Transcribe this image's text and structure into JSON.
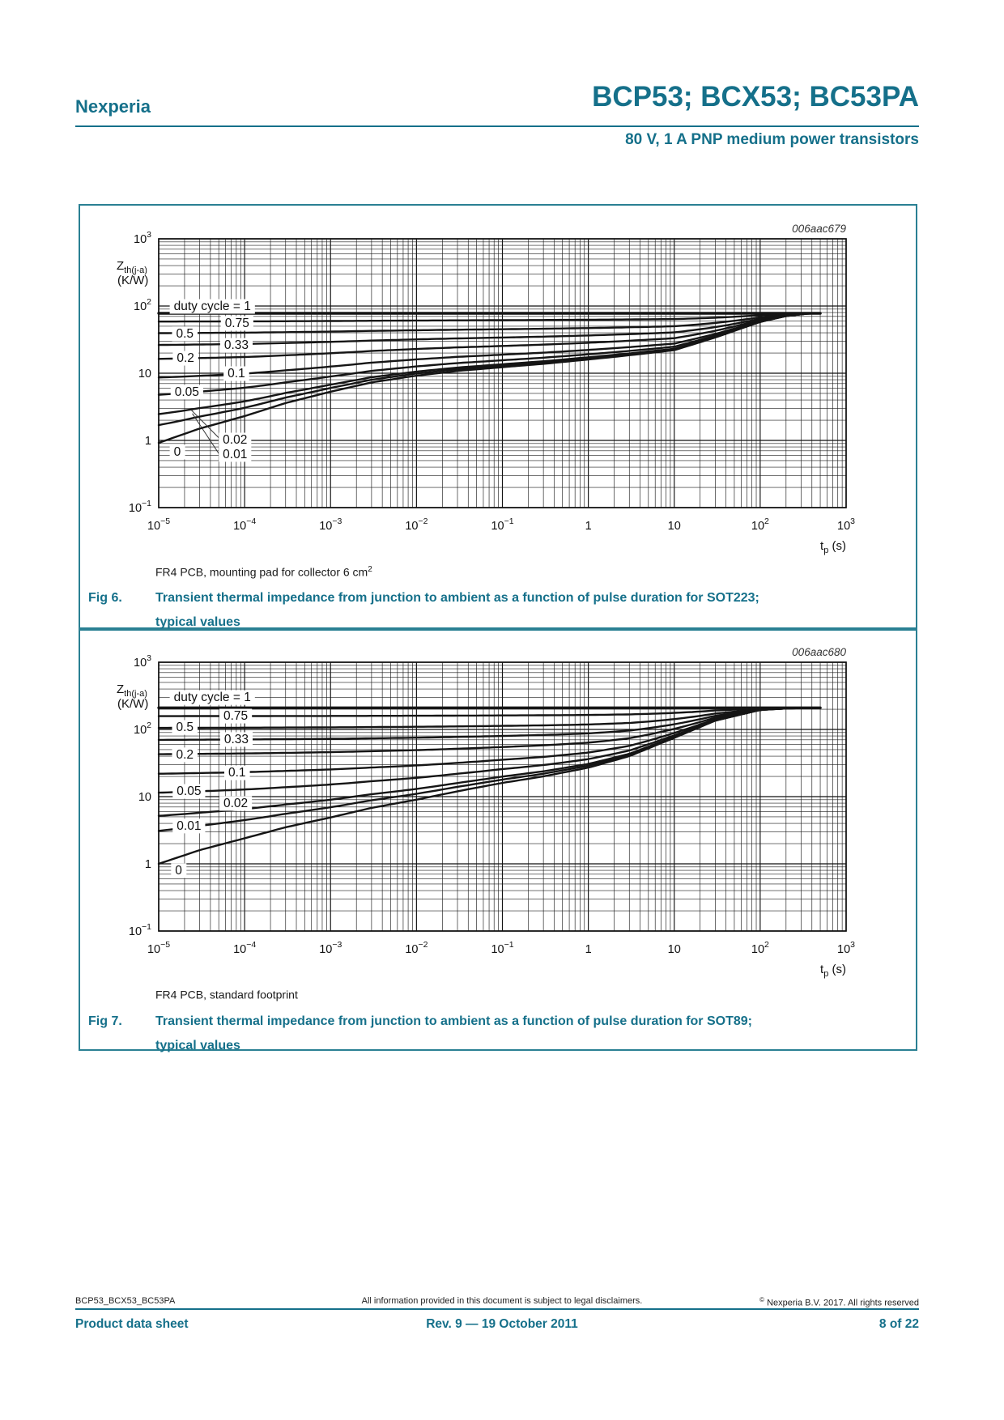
{
  "page": {
    "brand": "Nexperia",
    "title": "BCP53; BCX53; BC53PA",
    "subtitle": "80 V, 1 A PNP medium power transistors",
    "accent_color": "#15708a"
  },
  "figures": [
    {
      "note": "FR4 PCB, mounting pad for collector 6 cm",
      "note_sup": "2",
      "fig_label": "Fig 6.",
      "caption_line1": "Transient thermal impedance from junction to ambient as a function of pulse duration for SOT223;",
      "caption_line2": "typical values"
    },
    {
      "note": "FR4 PCB, standard footprint",
      "note_sup": "",
      "fig_label": "Fig 7.",
      "caption_line1": "Transient thermal impedance from junction to ambient as a function of pulse duration for SOT89;",
      "caption_line2": "typical values"
    }
  ],
  "chart_data": [
    {
      "type": "line",
      "title": "006aac679",
      "xlabel": {
        "main": "t",
        "sub": "p",
        "rest": " (s)"
      },
      "ylabel": {
        "main": "Z",
        "sub": "th(j-a)",
        "unit": "(K/W)"
      },
      "xlim": [
        1e-05,
        1000
      ],
      "ylim": [
        0.1,
        1000
      ],
      "x_scale": "log",
      "y_scale": "log",
      "grid": "full log-log minor grid",
      "curve_end": 500,
      "rth_ja": 78,
      "duty_cycles": [
        1,
        0.75,
        0.5,
        0.33,
        0.2,
        0.1,
        0.05,
        0.02,
        0.01,
        0
      ],
      "series_rule": "Zth(d,tp) = d*Rth(j-a) + (1-d)*Zth_single(tp); duty cycle = 1 is flat at Rth(j-a); 0 is the single-pulse curve",
      "single_pulse": {
        "tp": [
          1e-05,
          3e-05,
          0.0001,
          0.0003,
          0.001,
          0.003,
          0.01,
          0.03,
          0.1,
          0.3,
          1,
          3,
          10,
          30,
          100,
          200,
          350,
          500
        ],
        "zth": [
          0.92,
          1.5,
          2.3,
          3.6,
          5.3,
          7.3,
          9.2,
          10.8,
          12.3,
          13.8,
          16,
          18.5,
          22,
          34,
          58,
          71,
          77,
          78
        ]
      },
      "series": [
        {
          "name": "duty cycle = 1",
          "tp": [
            1e-05,
            0.0001,
            0.001,
            0.01,
            0.1,
            1,
            10,
            100,
            500
          ],
          "zth": [
            78,
            78,
            78,
            78,
            78,
            78,
            78,
            78,
            78
          ]
        },
        {
          "name": "0.75",
          "tp": [
            1e-05,
            0.0001,
            0.001,
            0.01,
            0.1,
            1,
            10,
            100,
            500
          ],
          "zth": [
            58.7,
            59.1,
            59.8,
            60.8,
            61.6,
            62.5,
            64,
            73,
            78
          ]
        },
        {
          "name": "0.5",
          "tp": [
            1e-05,
            0.0001,
            0.001,
            0.01,
            0.1,
            1,
            10,
            100,
            500
          ],
          "zth": [
            39.5,
            40.2,
            41.7,
            43.6,
            45.2,
            47,
            50,
            68,
            78
          ]
        },
        {
          "name": "0.33",
          "tp": [
            1e-05,
            0.0001,
            0.001,
            0.01,
            0.1,
            1,
            10,
            100,
            500
          ],
          "zth": [
            26.4,
            27.3,
            29.3,
            31.9,
            34,
            36.4,
            40.5,
            64.6,
            78
          ]
        },
        {
          "name": "0.2",
          "tp": [
            1e-05,
            0.0001,
            0.001,
            0.01,
            0.1,
            1,
            10,
            100,
            500
          ],
          "zth": [
            16.3,
            17.4,
            19.8,
            23,
            25.4,
            28.4,
            33.2,
            62,
            78
          ]
        },
        {
          "name": "0.1",
          "tp": [
            1e-05,
            0.0001,
            0.001,
            0.01,
            0.1,
            1,
            10,
            100,
            500
          ],
          "zth": [
            8.6,
            9.9,
            12.6,
            16.1,
            18.9,
            22.2,
            27.6,
            60,
            78
          ]
        },
        {
          "name": "0.05",
          "tp": [
            1e-05,
            0.0001,
            0.001,
            0.01,
            0.1,
            1,
            10,
            100,
            500
          ],
          "zth": [
            4.8,
            6.1,
            8.9,
            12.6,
            15.6,
            19.1,
            24.8,
            59,
            78
          ]
        },
        {
          "name": "0.02",
          "tp": [
            1e-05,
            0.0001,
            0.001,
            0.01,
            0.1,
            1,
            10,
            100,
            500
          ],
          "zth": [
            2.5,
            3.8,
            6.8,
            10.6,
            13.6,
            17.2,
            23.1,
            58.4,
            78
          ]
        },
        {
          "name": "0.01",
          "tp": [
            1e-05,
            0.0001,
            0.001,
            0.01,
            0.1,
            1,
            10,
            100,
            500
          ],
          "zth": [
            1.7,
            3.1,
            6,
            9.9,
            13,
            16.6,
            22.6,
            58.2,
            78
          ]
        },
        {
          "name": "0",
          "tp": [
            1e-05,
            0.0001,
            0.001,
            0.01,
            0.1,
            1,
            10,
            100,
            500
          ],
          "zth": [
            0.92,
            2.3,
            5.3,
            9.2,
            12.3,
            16,
            22,
            58,
            78
          ]
        }
      ],
      "x_ticks": [
        {
          "m": "10",
          "e": "−5"
        },
        {
          "m": "10",
          "e": "−4"
        },
        {
          "m": "10",
          "e": "−3"
        },
        {
          "m": "10",
          "e": "−2"
        },
        {
          "m": "10",
          "e": "−1"
        },
        {
          "m": "1"
        },
        {
          "m": "10"
        },
        {
          "m": "10",
          "e": "2"
        },
        {
          "m": "10",
          "e": "3"
        }
      ],
      "y_ticks": [
        {
          "m": "10",
          "e": "3"
        },
        {
          "m": "10",
          "e": "2"
        },
        {
          "m": "10"
        },
        {
          "m": "1"
        },
        {
          "m": "10",
          "e": "−1"
        }
      ],
      "labels": [
        {
          "text": "duty cycle = 1",
          "fx": 0.078,
          "fy": 0.25
        },
        {
          "text": "0.75",
          "fx": 0.114,
          "fy": 0.313
        },
        {
          "text": "0.5",
          "fx": 0.038,
          "fy": 0.352
        },
        {
          "text": "0.33",
          "fx": 0.113,
          "fy": 0.395
        },
        {
          "text": "0.2",
          "fx": 0.039,
          "fy": 0.443
        },
        {
          "text": "0.1",
          "fx": 0.113,
          "fy": 0.5
        },
        {
          "text": "0.05",
          "fx": 0.041,
          "fy": 0.569
        },
        {
          "text": "0.02",
          "fx": 0.111,
          "fy": 0.747,
          "line": [
            0.047,
            0.636,
            0.09,
            0.747
          ]
        },
        {
          "text": "0.01",
          "fx": 0.111,
          "fy": 0.801,
          "line": [
            0.049,
            0.65,
            0.088,
            0.801
          ]
        },
        {
          "text": "0",
          "fx": 0.027,
          "fy": 0.792
        }
      ]
    },
    {
      "type": "line",
      "title": "006aac680",
      "xlabel": {
        "main": "t",
        "sub": "p",
        "rest": " (s)"
      },
      "ylabel": {
        "main": "Z",
        "sub": "th(j-a)",
        "unit": "(K/W)"
      },
      "xlim": [
        1e-05,
        1000
      ],
      "ylim": [
        0.1,
        1000
      ],
      "x_scale": "log",
      "y_scale": "log",
      "grid": "full log-log minor grid",
      "curve_end": 500,
      "rth_ja": 210,
      "duty_cycles": [
        1,
        0.75,
        0.5,
        0.33,
        0.2,
        0.1,
        0.05,
        0.02,
        0.01,
        0
      ],
      "series_rule": "Zth(d,tp) = d*Rth(j-a) + (1-d)*Zth_single(tp); duty cycle = 1 is flat at Rth(j-a); 0 is the single-pulse curve",
      "single_pulse": {
        "tp": [
          1e-05,
          3e-05,
          0.0001,
          0.0003,
          0.001,
          0.003,
          0.01,
          0.03,
          0.1,
          0.3,
          1,
          3,
          10,
          30,
          100,
          200,
          350,
          500
        ],
        "zth": [
          1.0,
          1.6,
          2.4,
          3.5,
          4.9,
          6.8,
          9.0,
          12,
          16,
          20,
          27,
          40,
          75,
          135,
          195,
          205,
          209,
          210
        ]
      },
      "series": [
        {
          "name": "duty cycle = 1",
          "tp": [
            1e-05,
            0.0001,
            0.001,
            0.01,
            0.1,
            1,
            10,
            100,
            500
          ],
          "zth": [
            210,
            210,
            210,
            210,
            210,
            210,
            210,
            210,
            210
          ]
        },
        {
          "name": "0.75",
          "tp": [
            1e-05,
            0.0001,
            0.001,
            0.01,
            0.1,
            1,
            10,
            100,
            500
          ],
          "zth": [
            157.8,
            158.1,
            158.7,
            159.8,
            161.5,
            164.3,
            176.3,
            206.3,
            210
          ]
        },
        {
          "name": "0.5",
          "tp": [
            1e-05,
            0.0001,
            0.001,
            0.01,
            0.1,
            1,
            10,
            100,
            500
          ],
          "zth": [
            105.5,
            106.2,
            107.5,
            109.5,
            113,
            118.5,
            142.5,
            202.5,
            210
          ]
        },
        {
          "name": "0.33",
          "tp": [
            1e-05,
            0.0001,
            0.001,
            0.01,
            0.1,
            1,
            10,
            100,
            500
          ],
          "zth": [
            70,
            70.9,
            72.6,
            75.3,
            80,
            87.4,
            119.6,
            200,
            210
          ]
        },
        {
          "name": "0.2",
          "tp": [
            1e-05,
            0.0001,
            0.001,
            0.01,
            0.1,
            1,
            10,
            100,
            500
          ],
          "zth": [
            42.8,
            43.9,
            45.9,
            49.2,
            54.8,
            63.6,
            102,
            198,
            210
          ]
        },
        {
          "name": "0.1",
          "tp": [
            1e-05,
            0.0001,
            0.001,
            0.01,
            0.1,
            1,
            10,
            100,
            500
          ],
          "zth": [
            21.9,
            23.2,
            25.4,
            29.1,
            35.4,
            45.3,
            88.5,
            196.5,
            210
          ]
        },
        {
          "name": "0.05",
          "tp": [
            1e-05,
            0.0001,
            0.001,
            0.01,
            0.1,
            1,
            10,
            100,
            500
          ],
          "zth": [
            11.5,
            12.8,
            15.2,
            19.1,
            25.7,
            36.2,
            81.8,
            195.8,
            210
          ]
        },
        {
          "name": "0.02",
          "tp": [
            1e-05,
            0.0001,
            0.001,
            0.01,
            0.1,
            1,
            10,
            100,
            500
          ],
          "zth": [
            5.2,
            6.6,
            9,
            13,
            19.9,
            30.7,
            77.7,
            195.3,
            210
          ]
        },
        {
          "name": "0.01",
          "tp": [
            1e-05,
            0.0001,
            0.001,
            0.01,
            0.1,
            1,
            10,
            100,
            500
          ],
          "zth": [
            3.1,
            4.5,
            7,
            11,
            17.9,
            28.8,
            76.4,
            195.2,
            210
          ]
        },
        {
          "name": "0",
          "tp": [
            1e-05,
            0.0001,
            0.001,
            0.01,
            0.1,
            1,
            10,
            100,
            500
          ],
          "zth": [
            1,
            2.4,
            4.9,
            9,
            16,
            27,
            75,
            195,
            210
          ]
        }
      ],
      "x_ticks": [
        {
          "m": "10",
          "e": "−5"
        },
        {
          "m": "10",
          "e": "−4"
        },
        {
          "m": "10",
          "e": "−3"
        },
        {
          "m": "10",
          "e": "−2"
        },
        {
          "m": "10",
          "e": "−1"
        },
        {
          "m": "1"
        },
        {
          "m": "10"
        },
        {
          "m": "10",
          "e": "2"
        },
        {
          "m": "10",
          "e": "3"
        }
      ],
      "y_ticks": [
        {
          "m": "10",
          "e": "3"
        },
        {
          "m": "10",
          "e": "2"
        },
        {
          "m": "10"
        },
        {
          "m": "1"
        },
        {
          "m": "10",
          "e": "−1"
        }
      ],
      "labels": [
        {
          "text": "duty cycle = 1",
          "fx": 0.078,
          "fy": 0.13
        },
        {
          "text": "0.75",
          "fx": 0.112,
          "fy": 0.199
        },
        {
          "text": "0.5",
          "fx": 0.038,
          "fy": 0.241
        },
        {
          "text": "0.33",
          "fx": 0.113,
          "fy": 0.286
        },
        {
          "text": "0.2",
          "fx": 0.038,
          "fy": 0.343
        },
        {
          "text": "0.1",
          "fx": 0.114,
          "fy": 0.41
        },
        {
          "text": "0.05",
          "fx": 0.044,
          "fy": 0.479
        },
        {
          "text": "0.02",
          "fx": 0.112,
          "fy": 0.524
        },
        {
          "text": "0.01",
          "fx": 0.044,
          "fy": 0.608
        },
        {
          "text": "0",
          "fx": 0.029,
          "fy": 0.774
        }
      ]
    }
  ],
  "footer": {
    "doc_id": "BCP53_BCX53_BC53PA",
    "disclaimer": "All information provided in this document is subject to legal disclaimers.",
    "copyright_symbol": "©",
    "copyright": " Nexperia B.V. 2017. All rights reserved",
    "doc_type": "Product data sheet",
    "revision": "Rev. 9 — 19 October 2011",
    "page_number": "8 of 22"
  }
}
